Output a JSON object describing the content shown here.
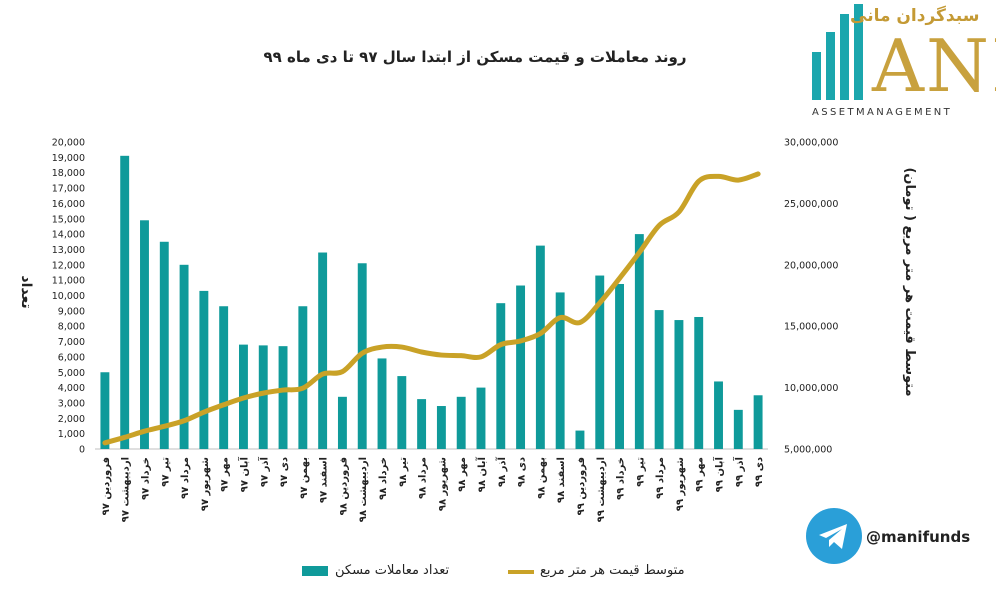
{
  "title": "روند معاملات و قیمت مسکن از ابتدا سال ۹۷ تا دی ماه ۹۹",
  "logo": {
    "fa": "سبدگردان مانی",
    "main": "ANI",
    "sub": "ASSETMANAGEMENT"
  },
  "telegram": {
    "handle": "@manifunds"
  },
  "legend": {
    "bar": "تعداد معاملات مسکن",
    "line": "متوسط قیمت هر متر مربع"
  },
  "colors": {
    "bar": "#0f9a9a",
    "line": "#c9a227",
    "logo_bar1": "#1ba6ad",
    "logo_gold": "#c8a13e"
  },
  "chart_data": {
    "type": "bar",
    "title": "روند معاملات و قیمت مسکن از ابتدا سال ۹۷ تا دی ماه ۹۹",
    "ylabel_left": "تعداد",
    "ylabel_right": "متوسط قیمت هر متر مربع ( تومان)",
    "ylim_left": [
      0,
      20000
    ],
    "ylim_right": [
      5000000,
      30000000
    ],
    "yticks_left": [
      "0",
      "1,000",
      "2,000",
      "3,000",
      "4,000",
      "5,000",
      "6,000",
      "7,000",
      "8,000",
      "9,000",
      "10,000",
      "11,000",
      "12,000",
      "13,000",
      "14,000",
      "15,000",
      "16,000",
      "17,000",
      "18,000",
      "19,000",
      "20,000"
    ],
    "yticks_right": [
      "5,000,000",
      "10,000,000",
      "15,000,000",
      "20,000,000",
      "25,000,000",
      "30,000,000"
    ],
    "categories": [
      "فروردین ۹۷",
      "اردیبهشت ۹۷",
      "خرداد ۹۷",
      "تیر ۹۷",
      "مرداد ۹۷",
      "شهریور ۹۷",
      "مهر ۹۷",
      "آبان ۹۷",
      "آذر ۹۷",
      "دی ۹۷",
      "بهمن ۹۷",
      "اسفند ۹۷",
      "فروردین ۹۸",
      "اردیبهشت ۹۸",
      "خرداد ۹۸",
      "تیر ۹۸",
      "مرداد ۹۸",
      "شهریور ۹۸",
      "مهر ۹۸",
      "آبان ۹۸",
      "آذر ۹۸",
      "دی ۹۸",
      "بهمن ۹۸",
      "اسفند ۹۸",
      "فروردین ۹۹",
      "اردیبهشت ۹۹",
      "خرداد ۹۹",
      "تیر ۹۹",
      "مرداد ۹۹",
      "شهریور ۹۹",
      "مهر ۹۹",
      "آبان ۹۹",
      "آذر ۹۹",
      "دی ۹۹"
    ],
    "series": [
      {
        "name": "تعداد معاملات مسکن",
        "type": "bar",
        "axis": "left",
        "values": [
          5000,
          19100,
          14900,
          13500,
          12000,
          10300,
          9300,
          6800,
          6750,
          6700,
          9300,
          12800,
          3400,
          12100,
          5900,
          4750,
          3250,
          2800,
          3400,
          4000,
          9500,
          10650,
          13250,
          10200,
          1200,
          11300,
          10750,
          14000,
          9050,
          8400,
          8600,
          4400,
          2550,
          3500
        ]
      },
      {
        "name": "متوسط قیمت هر متر مربع",
        "type": "line",
        "axis": "right",
        "values": [
          5500000,
          5950000,
          6450000,
          6850000,
          7300000,
          8000000,
          8600000,
          9150000,
          9550000,
          9800000,
          9950000,
          11100000,
          11300000,
          12800000,
          13300000,
          13300000,
          12900000,
          12650000,
          12600000,
          12500000,
          13500000,
          13800000,
          14400000,
          15700000,
          15300000,
          16900000,
          18900000,
          21000000,
          23200000,
          24300000,
          26800000,
          27200000,
          26900000,
          27400000
        ]
      }
    ]
  }
}
